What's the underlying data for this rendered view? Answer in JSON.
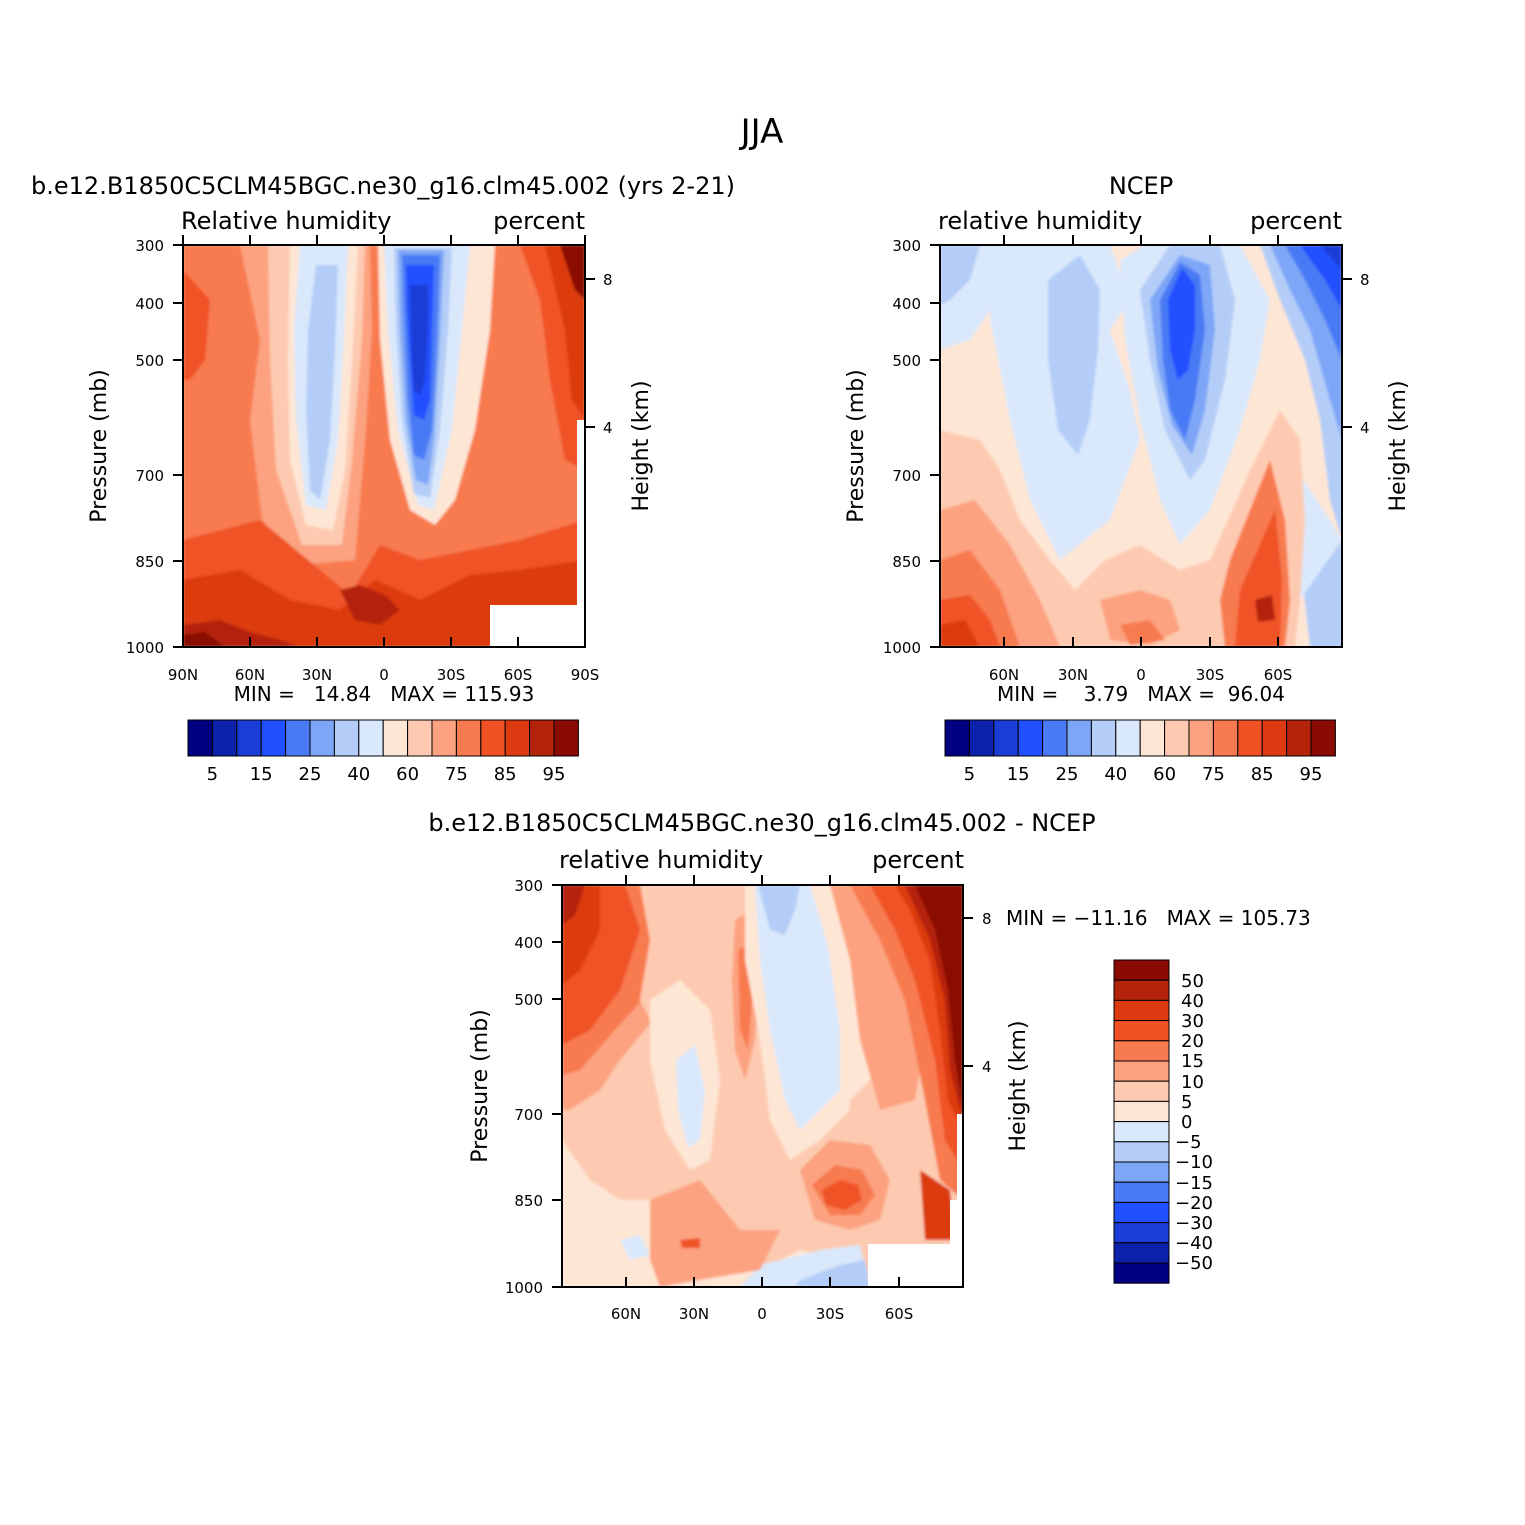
{
  "figure": {
    "title": "JJA",
    "colors": {
      "blues": [
        "#000080",
        "#0d22aa",
        "#1a3dd5",
        "#2050ff",
        "#4a7af5",
        "#7ea6f7",
        "#b4cdf8",
        "#dae8fb"
      ],
      "reds": [
        "#fee6d5",
        "#fdcab1",
        "#fca280",
        "#f87a50",
        "#f05226",
        "#dc3a10",
        "#b4240a",
        "#8a0a04"
      ]
    }
  },
  "panels": [
    {
      "id": "model",
      "run_title": "b.e12.B1850C5CLM45BGC.ne30_g16.clm45.002 (yrs 2-21)",
      "left_label": "Relative humidity",
      "right_label": "percent",
      "ylabel": "Pressure (mb)",
      "right_axis_label": "Height (km)",
      "min_label": "MIN =",
      "min_value": "14.84",
      "max_label": "MAX =",
      "max_value": "115.93",
      "stats_line": "MIN =   14.84   MAX = 115.93"
    },
    {
      "id": "ncep",
      "run_title": "NCEP",
      "left_label": "relative humidity",
      "right_label": "percent",
      "ylabel": "Pressure (mb)",
      "right_axis_label": "Height (km)",
      "min_label": "MIN =",
      "min_value": "3.79",
      "max_label": "MAX =",
      "max_value": "96.04",
      "stats_line": "MIN =    3.79   MAX =  96.04"
    },
    {
      "id": "diff",
      "run_title": "b.e12.B1850C5CLM45BGC.ne30_g16.clm45.002 - NCEP",
      "left_label": "relative humidity",
      "right_label": "percent",
      "ylabel": "Pressure (mb)",
      "right_axis_label": "Height (km)",
      "min_label": "MIN =",
      "min_value": "-11.16",
      "max_label": "MAX =",
      "max_value": "105.73",
      "stats_line": "MIN = −11.16   MAX = 105.73"
    }
  ],
  "chart_data": [
    {
      "type": "heatmap",
      "title": "b.e12.B1850C5CLM45BGC.ne30_g16.clm45.002 (yrs 2-21)",
      "variable": "Relative humidity",
      "units": "percent",
      "xlabel": "",
      "ylabel": "Pressure (mb)",
      "x_ticks": [
        "90N",
        "60N",
        "30N",
        "0",
        "30S",
        "60S",
        "90S"
      ],
      "x_tick_values": [
        90,
        60,
        30,
        0,
        -30,
        -60,
        -90
      ],
      "y_ticks": [
        "300",
        "400",
        "500",
        "700",
        "850",
        "1000"
      ],
      "y_tick_values": [
        300,
        400,
        500,
        700,
        850,
        1000
      ],
      "y2_ticks": [
        "8",
        "4"
      ],
      "y2_tick_values": [
        8,
        4
      ],
      "y2_label": "Height (km)",
      "min": 14.84,
      "max": 115.93,
      "colorbar_levels": [
        5,
        10,
        15,
        20,
        25,
        30,
        40,
        50,
        60,
        65,
        75,
        80,
        85,
        90,
        95
      ],
      "colorbar_labels": [
        "5",
        "15",
        "25",
        "40",
        "60",
        "75",
        "85",
        "95"
      ]
    },
    {
      "type": "heatmap",
      "title": "NCEP",
      "variable": "relative humidity",
      "units": "percent",
      "xlabel": "",
      "ylabel": "Pressure (mb)",
      "x_ticks": [
        "60N",
        "30N",
        "0",
        "30S",
        "60S"
      ],
      "x_tick_values": [
        60,
        30,
        0,
        -30,
        -60
      ],
      "y_ticks": [
        "300",
        "400",
        "500",
        "700",
        "850",
        "1000"
      ],
      "y_tick_values": [
        300,
        400,
        500,
        700,
        850,
        1000
      ],
      "y2_ticks": [
        "8",
        "4"
      ],
      "y2_tick_values": [
        8,
        4
      ],
      "y2_label": "Height (km)",
      "min": 3.79,
      "max": 96.04,
      "colorbar_levels": [
        5,
        10,
        15,
        20,
        25,
        30,
        40,
        50,
        60,
        65,
        75,
        80,
        85,
        90,
        95
      ],
      "colorbar_labels": [
        "5",
        "15",
        "25",
        "40",
        "60",
        "75",
        "85",
        "95"
      ]
    },
    {
      "type": "heatmap",
      "title": "b.e12.B1850C5CLM45BGC.ne30_g16.clm45.002 - NCEP",
      "variable": "relative humidity",
      "units": "percent",
      "xlabel": "",
      "ylabel": "Pressure (mb)",
      "x_ticks": [
        "60N",
        "30N",
        "0",
        "30S",
        "60S"
      ],
      "x_tick_values": [
        60,
        30,
        0,
        -30,
        -60
      ],
      "y_ticks": [
        "300",
        "400",
        "500",
        "700",
        "850",
        "1000"
      ],
      "y_tick_values": [
        300,
        400,
        500,
        700,
        850,
        1000
      ],
      "y2_ticks": [
        "8",
        "4"
      ],
      "y2_tick_values": [
        8,
        4
      ],
      "y2_label": "Height (km)",
      "min": -11.16,
      "max": 105.73,
      "colorbar_levels": [
        50,
        40,
        30,
        20,
        15,
        10,
        5,
        0,
        -5,
        -10,
        -15,
        -20,
        -30,
        -40,
        -50
      ],
      "colorbar_labels": [
        "50",
        "40",
        "30",
        "20",
        "15",
        "10",
        "5",
        "0",
        "−5",
        "−10",
        "−15",
        "−20",
        "−30",
        "−40",
        "−50"
      ]
    }
  ]
}
